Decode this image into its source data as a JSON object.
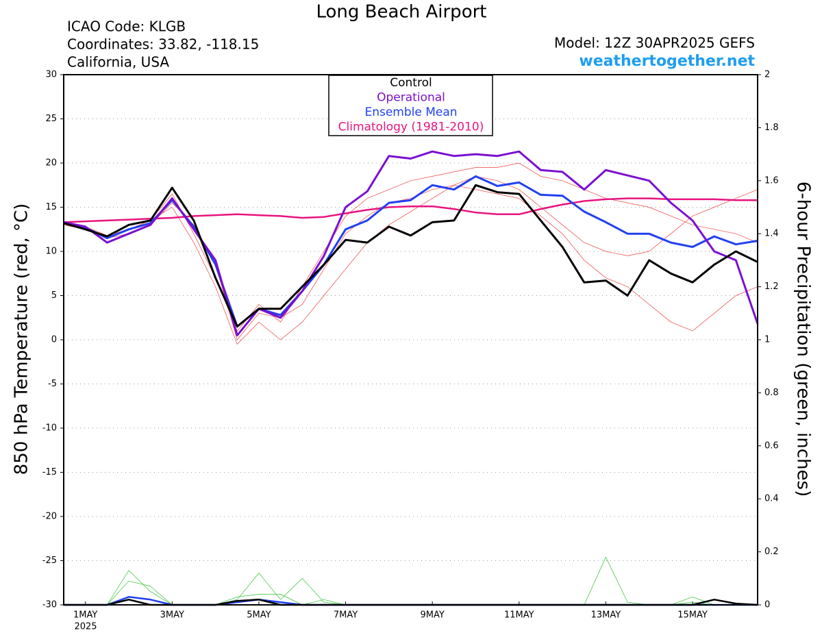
{
  "chart_data": {
    "type": "line",
    "title": "Long Beach Airport",
    "info": [
      "ICAO Code: KLGB",
      "Coordinates: 33.82, -118.15",
      "California, USA"
    ],
    "model": "Model: 12Z 30APR2025 GEFS",
    "source": "weathertogether.net",
    "ylabel": "850 hPa Temperature (red, °C)",
    "y2label": "6-hour Precipitation (green, inches)",
    "x_sublabel": "2025",
    "x": [
      0,
      12,
      24,
      36,
      48,
      60,
      72,
      84,
      96,
      108,
      120,
      132,
      144,
      156,
      168,
      180,
      192,
      204,
      216,
      228,
      240,
      252,
      264,
      276,
      288,
      300,
      312,
      324,
      336,
      348,
      360,
      372,
      384
    ],
    "xlim": [
      0,
      384
    ],
    "xticks": [
      {
        "value": 12,
        "label": "1MAY"
      },
      {
        "value": 60,
        "label": "3MAY"
      },
      {
        "value": 108,
        "label": "5MAY"
      },
      {
        "value": 156,
        "label": "7MAY"
      },
      {
        "value": 204,
        "label": "9MAY"
      },
      {
        "value": 252,
        "label": "11MAY"
      },
      {
        "value": 300,
        "label": "13MAY"
      },
      {
        "value": 348,
        "label": "15MAY"
      }
    ],
    "ylim": [
      -30,
      30
    ],
    "yticks": [
      -30,
      -25,
      -20,
      -15,
      -10,
      -5,
      0,
      5,
      10,
      15,
      20,
      25,
      30
    ],
    "y2lim": [
      0,
      2
    ],
    "y2ticks": [
      0,
      0.2,
      0.4,
      0.6,
      0.8,
      1,
      1.2,
      1.4,
      1.6,
      1.8,
      2
    ],
    "grid": true,
    "series": [
      {
        "color": "#f04040",
        "width": 0.7,
        "values": [
          13,
          12.5,
          11.5,
          12.5,
          13.5,
          16.5,
          12,
          7,
          1,
          4,
          2,
          6,
          10,
          14,
          16,
          17,
          18,
          18.5,
          19,
          19.5,
          19.5,
          20,
          18.5,
          18,
          17,
          16,
          15.5,
          15,
          14,
          13,
          12.5,
          12,
          11
        ]
      },
      {
        "color": "#f04040",
        "width": 0.7,
        "values": [
          13,
          12.5,
          11.5,
          12,
          13,
          15.5,
          13,
          8.5,
          0,
          3,
          2.5,
          4,
          8,
          12,
          14,
          15.5,
          16,
          17,
          17.5,
          17,
          16.5,
          16,
          14,
          12,
          9,
          7,
          6,
          4,
          2,
          1,
          3,
          5,
          6
        ]
      },
      {
        "color": "#f04040",
        "width": 0.7,
        "values": [
          13.2,
          12.8,
          11.8,
          12.5,
          13.5,
          15,
          11,
          6,
          -0.5,
          2,
          0,
          2,
          5,
          8,
          11,
          13,
          14.5,
          16,
          17.5,
          18.5,
          18,
          17,
          15,
          13,
          11,
          10,
          9.5,
          10,
          12,
          14,
          15,
          16,
          17
        ]
      },
      {
        "color": "#30c030",
        "width": 0.7,
        "axis": "y2",
        "values": [
          0,
          0,
          0,
          0.13,
          0.05,
          0,
          0,
          0,
          0.02,
          0.12,
          0.02,
          0.1,
          0.01,
          0,
          0,
          0,
          0,
          0,
          0,
          0,
          0,
          0,
          0,
          0,
          0,
          0.18,
          0.01,
          0,
          0,
          0.01,
          0,
          0,
          0
        ]
      },
      {
        "color": "#30c030",
        "width": 0.7,
        "axis": "y2",
        "values": [
          0,
          0,
          0,
          0.09,
          0.07,
          0,
          0,
          0,
          0.03,
          0.04,
          0.04,
          0,
          0.02,
          0,
          0,
          0,
          0,
          0,
          0,
          0,
          0,
          0,
          0,
          0,
          0,
          0,
          0,
          0,
          0,
          0.03,
          0,
          0,
          0
        ]
      },
      {
        "color": "#2040f0",
        "width": 2.5,
        "axis": "y2",
        "values": [
          0,
          0,
          0,
          0.03,
          0.02,
          0,
          0,
          0,
          0.01,
          0.02,
          0.01,
          0,
          0,
          0,
          0,
          0,
          0,
          0,
          0,
          0,
          0,
          0,
          0,
          0,
          0,
          0,
          0,
          0,
          0,
          0,
          0,
          0,
          0
        ]
      },
      {
        "color": "#000000",
        "width": 2.5,
        "axis": "y2",
        "values": [
          0,
          0,
          0,
          0.02,
          0,
          0,
          0,
          0,
          0.015,
          0.02,
          0,
          0,
          0,
          0,
          0,
          0,
          0,
          0,
          0,
          0,
          0,
          0,
          0,
          0,
          0,
          0,
          0,
          0,
          0,
          0,
          0.02,
          0.005,
          0
        ]
      },
      {
        "name": "Climatology (1981-2010)",
        "color": "#e8137e",
        "width": 2.5,
        "values": [
          13.3,
          13.4,
          13.5,
          13.6,
          13.7,
          13.8,
          14.0,
          14.1,
          14.2,
          14.1,
          14.0,
          13.8,
          13.9,
          14.3,
          14.7,
          15.0,
          15.1,
          15.1,
          14.8,
          14.4,
          14.2,
          14.2,
          14.8,
          15.3,
          15.7,
          15.9,
          16.0,
          16.0,
          15.9,
          15.9,
          15.9,
          15.8,
          15.8
        ]
      },
      {
        "name": "Ensemble Mean",
        "color": "#2040f0",
        "width": 3,
        "values": [
          13.2,
          12.7,
          11.5,
          12.5,
          13.2,
          15.8,
          12.8,
          8.5,
          1.5,
          3.5,
          2.8,
          5.5,
          8.5,
          12.5,
          13.5,
          15.5,
          15.8,
          17.5,
          17.0,
          18.5,
          17.4,
          17.8,
          16.4,
          16.3,
          14.5,
          13.3,
          12.0,
          12.0,
          11.0,
          10.5,
          11.7,
          10.8,
          11.2
        ]
      },
      {
        "name": "Operational",
        "color": "#7b0fd0",
        "width": 3,
        "values": [
          13.3,
          12.8,
          11.0,
          12.0,
          13.0,
          16.0,
          12.5,
          9.0,
          0.5,
          3.5,
          2.5,
          5.5,
          9.5,
          15.0,
          16.8,
          20.8,
          20.5,
          21.3,
          20.8,
          21.0,
          20.8,
          21.3,
          19.2,
          19.0,
          17.0,
          19.2,
          18.6,
          18.0,
          15.5,
          13.5,
          10.0,
          9.0,
          1.8
        ]
      },
      {
        "name": "Control",
        "color": "#000000",
        "width": 3,
        "values": [
          13.2,
          12.5,
          11.7,
          13.0,
          13.5,
          17.2,
          13.5,
          7.0,
          1.5,
          3.5,
          3.5,
          6.0,
          8.5,
          11.3,
          11.0,
          12.8,
          11.8,
          13.3,
          13.5,
          17.5,
          16.7,
          16.5,
          13.5,
          10.5,
          6.5,
          6.7,
          5.0,
          9.0,
          7.5,
          6.5,
          8.5,
          10.0,
          8.8
        ]
      }
    ],
    "legend_order": [
      10,
      9,
      8,
      7
    ]
  }
}
